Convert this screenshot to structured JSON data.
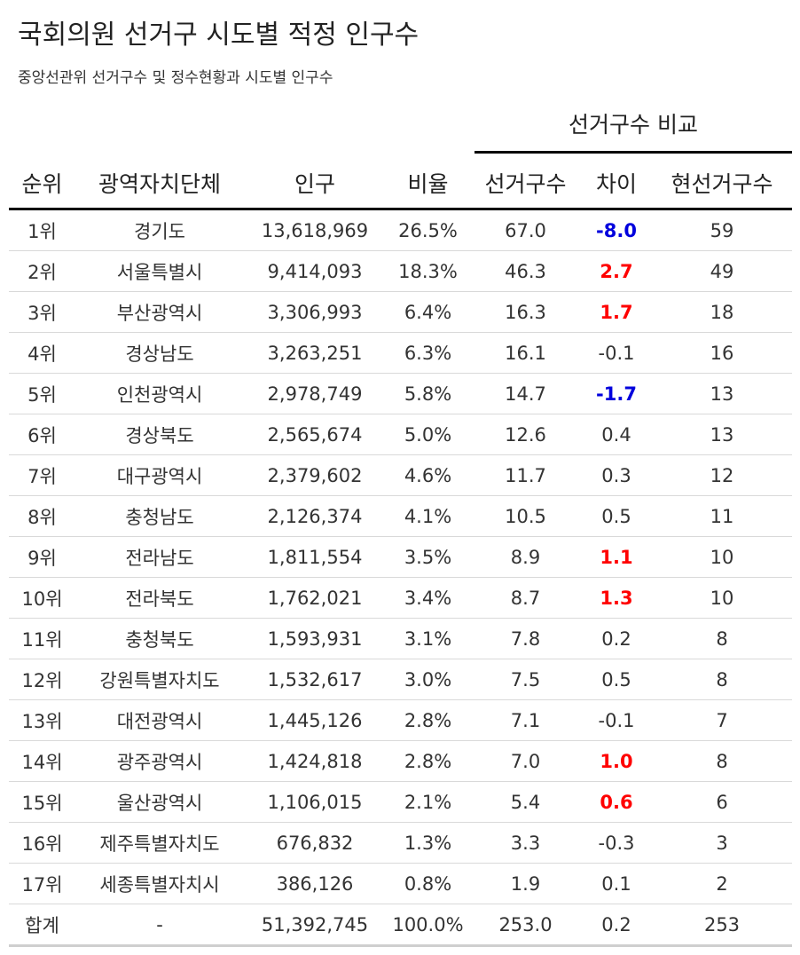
{
  "title": "국회의원 선거구 시도별 적정 인구수",
  "subtitle": "중앙선관위 선거구수 및 정수현황과 시도별 인구수",
  "group_header": "선거구수 비교",
  "headers": {
    "rank": "순위",
    "region": "광역자치단체",
    "population": "인구",
    "ratio": "비율",
    "districts": "선거구수",
    "diff": "차이",
    "current": "현선거구수"
  },
  "colors": {
    "positive_highlight": "#ff0000",
    "negative_highlight": "#0000dd",
    "rule": "#000000",
    "row_divider": "#d9d9d9"
  },
  "rows": [
    {
      "rank": "1위",
      "region": "경기도",
      "population": "13,618,969",
      "ratio": "26.5%",
      "districts": "67.0",
      "diff": "-8.0",
      "current": "59",
      "highlight": "neg"
    },
    {
      "rank": "2위",
      "region": "서울특별시",
      "population": "9,414,093",
      "ratio": "18.3%",
      "districts": "46.3",
      "diff": "2.7",
      "current": "49",
      "highlight": "pos"
    },
    {
      "rank": "3위",
      "region": "부산광역시",
      "population": "3,306,993",
      "ratio": "6.4%",
      "districts": "16.3",
      "diff": "1.7",
      "current": "18",
      "highlight": "pos"
    },
    {
      "rank": "4위",
      "region": "경상남도",
      "population": "3,263,251",
      "ratio": "6.3%",
      "districts": "16.1",
      "diff": "-0.1",
      "current": "16",
      "highlight": "none"
    },
    {
      "rank": "5위",
      "region": "인천광역시",
      "population": "2,978,749",
      "ratio": "5.8%",
      "districts": "14.7",
      "diff": "-1.7",
      "current": "13",
      "highlight": "neg"
    },
    {
      "rank": "6위",
      "region": "경상북도",
      "population": "2,565,674",
      "ratio": "5.0%",
      "districts": "12.6",
      "diff": "0.4",
      "current": "13",
      "highlight": "none"
    },
    {
      "rank": "7위",
      "region": "대구광역시",
      "population": "2,379,602",
      "ratio": "4.6%",
      "districts": "11.7",
      "diff": "0.3",
      "current": "12",
      "highlight": "none"
    },
    {
      "rank": "8위",
      "region": "충청남도",
      "population": "2,126,374",
      "ratio": "4.1%",
      "districts": "10.5",
      "diff": "0.5",
      "current": "11",
      "highlight": "none"
    },
    {
      "rank": "9위",
      "region": "전라남도",
      "population": "1,811,554",
      "ratio": "3.5%",
      "districts": "8.9",
      "diff": "1.1",
      "current": "10",
      "highlight": "pos"
    },
    {
      "rank": "10위",
      "region": "전라북도",
      "population": "1,762,021",
      "ratio": "3.4%",
      "districts": "8.7",
      "diff": "1.3",
      "current": "10",
      "highlight": "pos"
    },
    {
      "rank": "11위",
      "region": "충청북도",
      "population": "1,593,931",
      "ratio": "3.1%",
      "districts": "7.8",
      "diff": "0.2",
      "current": "8",
      "highlight": "none"
    },
    {
      "rank": "12위",
      "region": "강원특별자치도",
      "population": "1,532,617",
      "ratio": "3.0%",
      "districts": "7.5",
      "diff": "0.5",
      "current": "8",
      "highlight": "none"
    },
    {
      "rank": "13위",
      "region": "대전광역시",
      "population": "1,445,126",
      "ratio": "2.8%",
      "districts": "7.1",
      "diff": "-0.1",
      "current": "7",
      "highlight": "none"
    },
    {
      "rank": "14위",
      "region": "광주광역시",
      "population": "1,424,818",
      "ratio": "2.8%",
      "districts": "7.0",
      "diff": "1.0",
      "current": "8",
      "highlight": "pos"
    },
    {
      "rank": "15위",
      "region": "울산광역시",
      "population": "1,106,015",
      "ratio": "2.1%",
      "districts": "5.4",
      "diff": "0.6",
      "current": "6",
      "highlight": "pos"
    },
    {
      "rank": "16위",
      "region": "제주특별자치도",
      "population": "676,832",
      "ratio": "1.3%",
      "districts": "3.3",
      "diff": "-0.3",
      "current": "3",
      "highlight": "none"
    },
    {
      "rank": "17위",
      "region": "세종특별자치시",
      "population": "386,126",
      "ratio": "0.8%",
      "districts": "1.9",
      "diff": "0.1",
      "current": "2",
      "highlight": "none"
    }
  ],
  "total": {
    "rank": "합계",
    "region": "-",
    "population": "51,392,745",
    "ratio": "100.0%",
    "districts": "253.0",
    "diff": "0.2",
    "current": "253"
  }
}
